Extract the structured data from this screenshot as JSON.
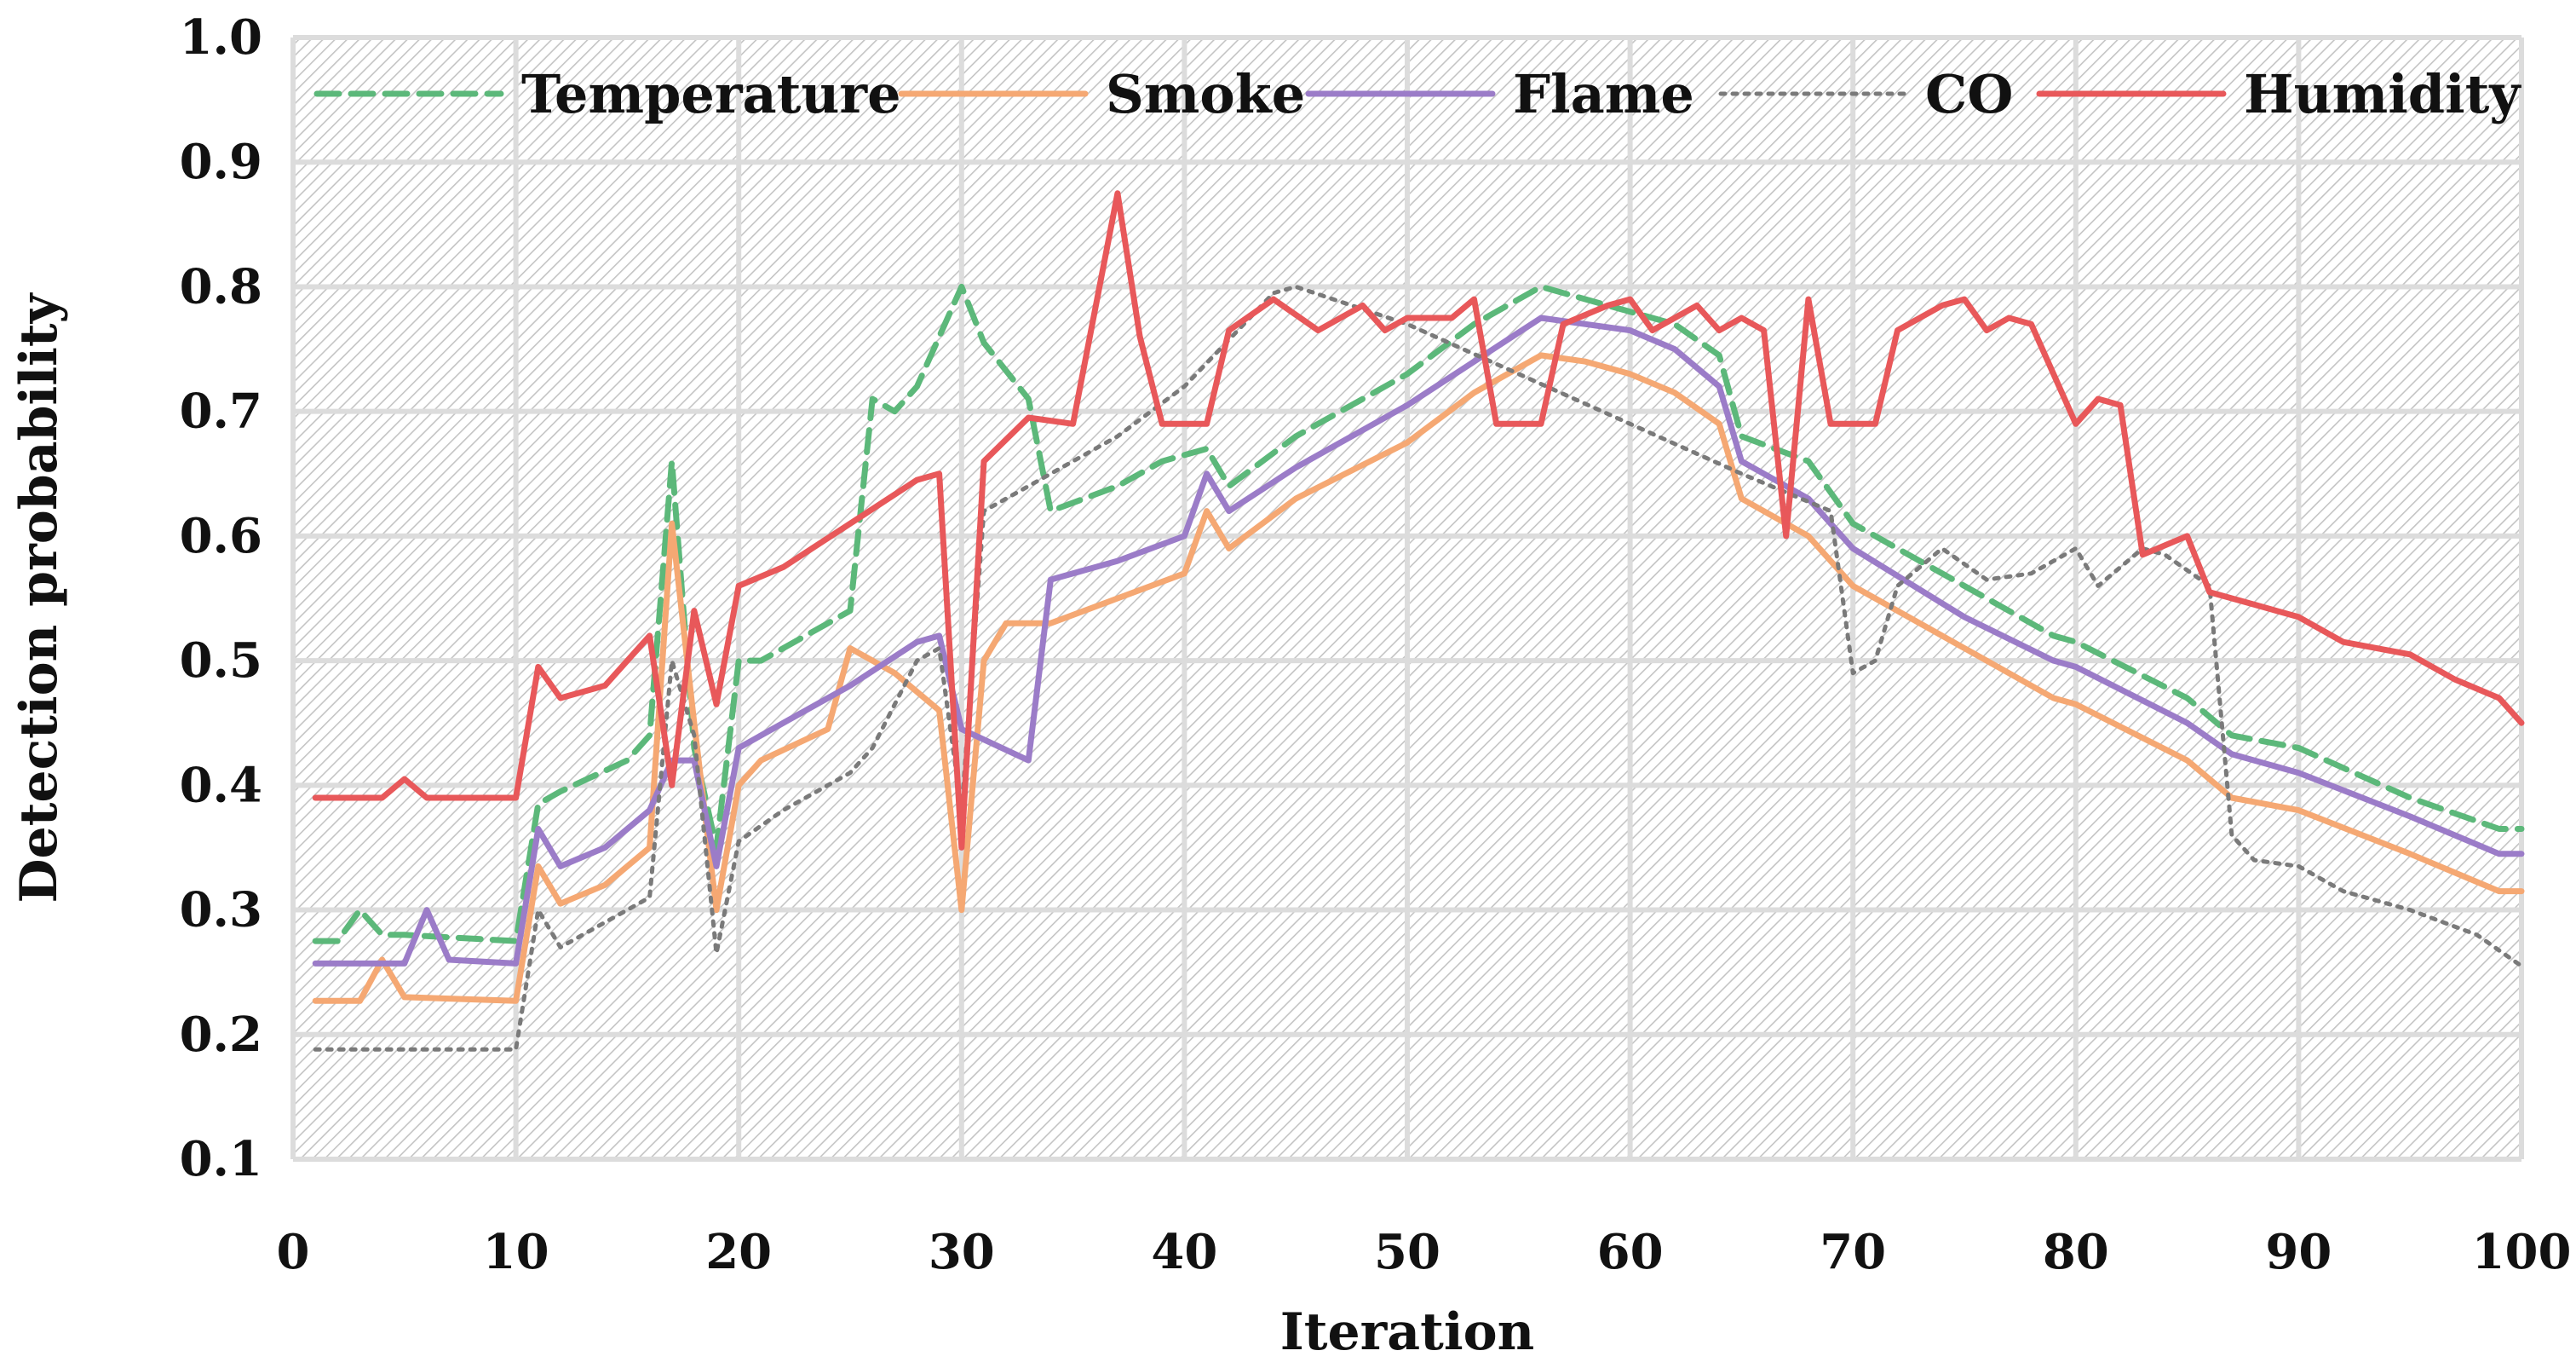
{
  "chart_data": {
    "type": "line",
    "title": "",
    "xlabel": "Iteration",
    "ylabel": "Detection probability",
    "xlim": [
      0,
      100
    ],
    "ylim": [
      0.1,
      1.0
    ],
    "x_ticks": [
      "0",
      "10",
      "20",
      "30",
      "40",
      "50",
      "60",
      "70",
      "80",
      "90",
      "100"
    ],
    "y_ticks": [
      "0.1",
      "0.2",
      "0.3",
      "0.4",
      "0.5",
      "0.6",
      "0.7",
      "0.8",
      "0.9",
      "1.0"
    ],
    "grid": true,
    "legend_position": "top",
    "background": "hatched-gray",
    "series": [
      {
        "name": "Temperature",
        "color": "#5cb87a",
        "dash": "dashed",
        "points": [
          [
            1,
            0.275
          ],
          [
            2,
            0.275
          ],
          [
            3,
            0.3
          ],
          [
            4,
            0.28
          ],
          [
            5,
            0.28
          ],
          [
            10,
            0.275
          ],
          [
            11,
            0.385
          ],
          [
            12,
            0.395
          ],
          [
            15,
            0.42
          ],
          [
            16,
            0.44
          ],
          [
            17,
            0.66
          ],
          [
            18,
            0.43
          ],
          [
            19,
            0.35
          ],
          [
            20,
            0.5
          ],
          [
            21,
            0.5
          ],
          [
            25,
            0.54
          ],
          [
            26,
            0.71
          ],
          [
            27,
            0.7
          ],
          [
            28,
            0.72
          ],
          [
            30,
            0.8
          ],
          [
            31,
            0.755
          ],
          [
            33,
            0.71
          ],
          [
            34,
            0.62
          ],
          [
            37,
            0.64
          ],
          [
            39,
            0.66
          ],
          [
            41,
            0.67
          ],
          [
            42,
            0.64
          ],
          [
            45,
            0.68
          ],
          [
            50,
            0.73
          ],
          [
            53,
            0.77
          ],
          [
            56,
            0.8
          ],
          [
            58,
            0.79
          ],
          [
            60,
            0.78
          ],
          [
            62,
            0.77
          ],
          [
            64,
            0.745
          ],
          [
            65,
            0.68
          ],
          [
            68,
            0.66
          ],
          [
            70,
            0.61
          ],
          [
            75,
            0.56
          ],
          [
            79,
            0.52
          ],
          [
            80,
            0.515
          ],
          [
            85,
            0.47
          ],
          [
            87,
            0.44
          ],
          [
            90,
            0.43
          ],
          [
            95,
            0.39
          ],
          [
            99,
            0.365
          ],
          [
            100,
            0.365
          ]
        ]
      },
      {
        "name": "Smoke",
        "color": "#f5a873",
        "dash": "solid",
        "points": [
          [
            1,
            0.227
          ],
          [
            3,
            0.227
          ],
          [
            4,
            0.26
          ],
          [
            5,
            0.23
          ],
          [
            10,
            0.227
          ],
          [
            11,
            0.335
          ],
          [
            12,
            0.305
          ],
          [
            14,
            0.32
          ],
          [
            16,
            0.35
          ],
          [
            17,
            0.61
          ],
          [
            18,
            0.45
          ],
          [
            19,
            0.3
          ],
          [
            20,
            0.4
          ],
          [
            21,
            0.42
          ],
          [
            24,
            0.445
          ],
          [
            25,
            0.51
          ],
          [
            27,
            0.49
          ],
          [
            29,
            0.46
          ],
          [
            30,
            0.3
          ],
          [
            31,
            0.5
          ],
          [
            32,
            0.53
          ],
          [
            34,
            0.53
          ],
          [
            37,
            0.55
          ],
          [
            40,
            0.57
          ],
          [
            41,
            0.62
          ],
          [
            42,
            0.59
          ],
          [
            45,
            0.63
          ],
          [
            50,
            0.675
          ],
          [
            53,
            0.715
          ],
          [
            56,
            0.745
          ],
          [
            58,
            0.74
          ],
          [
            60,
            0.73
          ],
          [
            62,
            0.715
          ],
          [
            64,
            0.69
          ],
          [
            65,
            0.63
          ],
          [
            68,
            0.6
          ],
          [
            70,
            0.56
          ],
          [
            75,
            0.51
          ],
          [
            79,
            0.47
          ],
          [
            80,
            0.465
          ],
          [
            85,
            0.42
          ],
          [
            87,
            0.39
          ],
          [
            90,
            0.38
          ],
          [
            95,
            0.345
          ],
          [
            99,
            0.315
          ],
          [
            100,
            0.315
          ]
        ]
      },
      {
        "name": "Flame",
        "color": "#9b7cc8",
        "dash": "solid",
        "points": [
          [
            1,
            0.257
          ],
          [
            5,
            0.257
          ],
          [
            6,
            0.3
          ],
          [
            7,
            0.26
          ],
          [
            10,
            0.257
          ],
          [
            11,
            0.365
          ],
          [
            12,
            0.335
          ],
          [
            14,
            0.35
          ],
          [
            16,
            0.38
          ],
          [
            17,
            0.42
          ],
          [
            18,
            0.42
          ],
          [
            19,
            0.335
          ],
          [
            20,
            0.43
          ],
          [
            22,
            0.45
          ],
          [
            25,
            0.48
          ],
          [
            28,
            0.515
          ],
          [
            29,
            0.52
          ],
          [
            30,
            0.445
          ],
          [
            33,
            0.42
          ],
          [
            34,
            0.565
          ],
          [
            37,
            0.58
          ],
          [
            40,
            0.6
          ],
          [
            41,
            0.65
          ],
          [
            42,
            0.62
          ],
          [
            45,
            0.655
          ],
          [
            50,
            0.705
          ],
          [
            53,
            0.74
          ],
          [
            56,
            0.775
          ],
          [
            58,
            0.77
          ],
          [
            60,
            0.765
          ],
          [
            62,
            0.75
          ],
          [
            64,
            0.72
          ],
          [
            65,
            0.66
          ],
          [
            68,
            0.63
          ],
          [
            70,
            0.59
          ],
          [
            75,
            0.535
          ],
          [
            79,
            0.5
          ],
          [
            80,
            0.495
          ],
          [
            85,
            0.45
          ],
          [
            87,
            0.425
          ],
          [
            90,
            0.41
          ],
          [
            95,
            0.375
          ],
          [
            99,
            0.345
          ],
          [
            100,
            0.345
          ]
        ]
      },
      {
        "name": "CO",
        "color": "#7a7a7a",
        "dash": "dotted",
        "points": [
          [
            1,
            0.188
          ],
          [
            10,
            0.188
          ],
          [
            11,
            0.3
          ],
          [
            12,
            0.27
          ],
          [
            16,
            0.31
          ],
          [
            17,
            0.5
          ],
          [
            18,
            0.44
          ],
          [
            19,
            0.265
          ],
          [
            20,
            0.355
          ],
          [
            22,
            0.38
          ],
          [
            25,
            0.41
          ],
          [
            26,
            0.43
          ],
          [
            28,
            0.5
          ],
          [
            29,
            0.51
          ],
          [
            30,
            0.38
          ],
          [
            31,
            0.62
          ],
          [
            33,
            0.64
          ],
          [
            37,
            0.68
          ],
          [
            40,
            0.72
          ],
          [
            44,
            0.795
          ],
          [
            45,
            0.8
          ],
          [
            50,
            0.77
          ],
          [
            55,
            0.73
          ],
          [
            60,
            0.69
          ],
          [
            65,
            0.65
          ],
          [
            69,
            0.62
          ],
          [
            70,
            0.49
          ],
          [
            71,
            0.5
          ],
          [
            72,
            0.56
          ],
          [
            74,
            0.59
          ],
          [
            76,
            0.565
          ],
          [
            78,
            0.57
          ],
          [
            80,
            0.59
          ],
          [
            81,
            0.56
          ],
          [
            83,
            0.59
          ],
          [
            84,
            0.585
          ],
          [
            86,
            0.56
          ],
          [
            87,
            0.36
          ],
          [
            88,
            0.34
          ],
          [
            90,
            0.335
          ],
          [
            92,
            0.315
          ],
          [
            95,
            0.3
          ],
          [
            98,
            0.28
          ],
          [
            100,
            0.255
          ]
        ]
      },
      {
        "name": "Humidity",
        "color": "#e8585a",
        "dash": "solid",
        "points": [
          [
            1,
            0.39
          ],
          [
            4,
            0.39
          ],
          [
            5,
            0.405
          ],
          [
            6,
            0.39
          ],
          [
            10,
            0.39
          ],
          [
            11,
            0.495
          ],
          [
            12,
            0.47
          ],
          [
            14,
            0.48
          ],
          [
            16,
            0.52
          ],
          [
            17,
            0.4
          ],
          [
            18,
            0.54
          ],
          [
            19,
            0.465
          ],
          [
            20,
            0.56
          ],
          [
            22,
            0.575
          ],
          [
            25,
            0.61
          ],
          [
            28,
            0.645
          ],
          [
            29,
            0.65
          ],
          [
            30,
            0.35
          ],
          [
            31,
            0.66
          ],
          [
            33,
            0.695
          ],
          [
            35,
            0.69
          ],
          [
            37,
            0.875
          ],
          [
            38,
            0.76
          ],
          [
            39,
            0.69
          ],
          [
            41,
            0.69
          ],
          [
            42,
            0.765
          ],
          [
            44,
            0.79
          ],
          [
            46,
            0.765
          ],
          [
            48,
            0.785
          ],
          [
            49,
            0.765
          ],
          [
            50,
            0.775
          ],
          [
            52,
            0.775
          ],
          [
            53,
            0.79
          ],
          [
            54,
            0.69
          ],
          [
            56,
            0.69
          ],
          [
            57,
            0.77
          ],
          [
            59,
            0.785
          ],
          [
            60,
            0.79
          ],
          [
            61,
            0.765
          ],
          [
            63,
            0.785
          ],
          [
            64,
            0.765
          ],
          [
            65,
            0.775
          ],
          [
            66,
            0.765
          ],
          [
            67,
            0.6
          ],
          [
            68,
            0.79
          ],
          [
            69,
            0.69
          ],
          [
            71,
            0.69
          ],
          [
            72,
            0.765
          ],
          [
            74,
            0.785
          ],
          [
            75,
            0.79
          ],
          [
            76,
            0.765
          ],
          [
            77,
            0.775
          ],
          [
            78,
            0.77
          ],
          [
            80,
            0.69
          ],
          [
            81,
            0.71
          ],
          [
            82,
            0.705
          ],
          [
            83,
            0.585
          ],
          [
            85,
            0.6
          ],
          [
            86,
            0.555
          ],
          [
            88,
            0.545
          ],
          [
            90,
            0.535
          ],
          [
            92,
            0.515
          ],
          [
            95,
            0.505
          ],
          [
            97,
            0.485
          ],
          [
            99,
            0.47
          ],
          [
            100,
            0.45
          ]
        ]
      }
    ]
  }
}
